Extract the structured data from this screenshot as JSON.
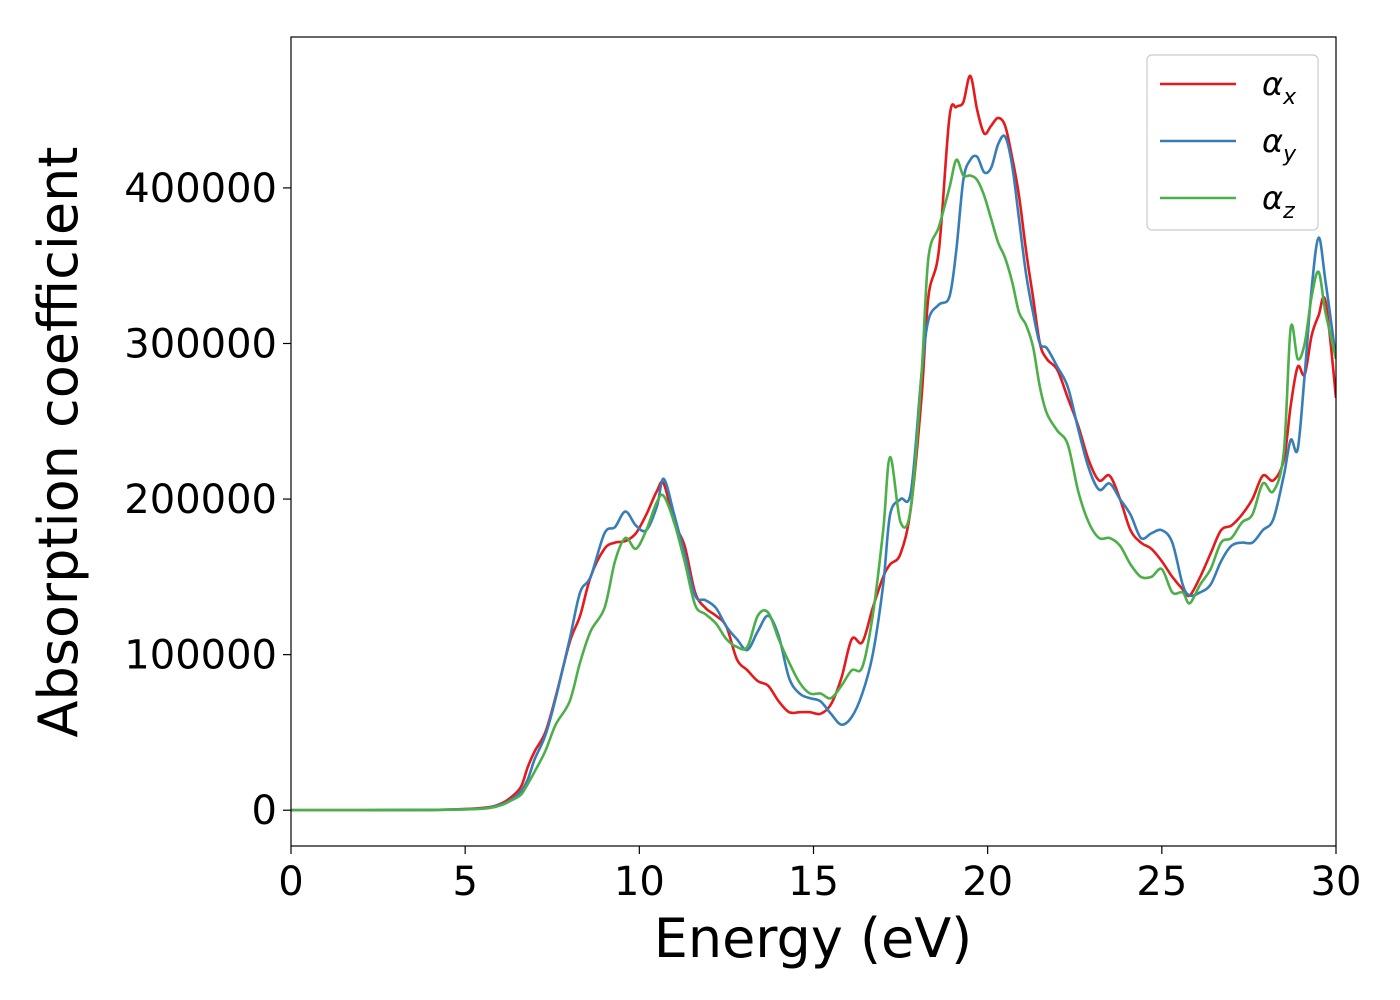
{
  "chart_data": {
    "type": "line",
    "xlabel": "Energy (eV)",
    "ylabel": "Absorption coefficient",
    "xlim": [
      0,
      30
    ],
    "ylim": [
      -23000,
      497000
    ],
    "xticks": [
      0,
      5,
      10,
      15,
      20,
      25,
      30
    ],
    "yticks": [
      0,
      100000,
      200000,
      300000,
      400000
    ],
    "grid": false,
    "legend": "top-right",
    "series": [
      {
        "name": "α",
        "sub": "x",
        "color": "#e41a1c",
        "x": [
          0,
          4,
          5.5,
          6.0,
          6.3,
          6.6,
          6.8,
          7.0,
          7.3,
          7.6,
          8.0,
          8.3,
          8.6,
          9.0,
          9.3,
          9.6,
          9.9,
          10.2,
          10.5,
          10.7,
          11.0,
          11.3,
          11.6,
          11.9,
          12.2,
          12.5,
          12.8,
          13.1,
          13.4,
          13.7,
          14.0,
          14.3,
          14.6,
          14.9,
          15.2,
          15.5,
          15.8,
          16.1,
          16.4,
          16.7,
          17.0,
          17.2,
          17.5,
          17.8,
          18.1,
          18.3,
          18.6,
          18.9,
          19.1,
          19.3,
          19.5,
          19.7,
          19.9,
          20.1,
          20.3,
          20.5,
          20.7,
          20.9,
          21.1,
          21.3,
          21.5,
          21.7,
          22.0,
          22.3,
          22.6,
          22.9,
          23.2,
          23.5,
          23.8,
          24.1,
          24.4,
          24.7,
          25.0,
          25.3,
          25.6,
          25.8,
          26.1,
          26.4,
          26.7,
          27.0,
          27.3,
          27.6,
          27.9,
          28.2,
          28.5,
          28.7,
          28.9,
          29.1,
          29.3,
          29.5,
          29.7,
          30
        ],
        "y": [
          0,
          200,
          1500,
          4000,
          8000,
          15000,
          28000,
          38000,
          50000,
          73000,
          108000,
          125000,
          150000,
          168000,
          172000,
          173000,
          178000,
          190000,
          205000,
          210000,
          185000,
          170000,
          140000,
          130000,
          125000,
          118000,
          97000,
          90000,
          83000,
          80000,
          70000,
          63000,
          63000,
          63000,
          62000,
          68000,
          85000,
          110000,
          108000,
          130000,
          150000,
          158000,
          165000,
          195000,
          265000,
          330000,
          360000,
          445000,
          452000,
          455000,
          472000,
          450000,
          435000,
          440000,
          445000,
          440000,
          420000,
          395000,
          360000,
          330000,
          300000,
          290000,
          283000,
          265000,
          247000,
          225000,
          212000,
          215000,
          200000,
          180000,
          172000,
          168000,
          160000,
          150000,
          142000,
          138000,
          150000,
          165000,
          180000,
          183000,
          190000,
          200000,
          215000,
          212000,
          225000,
          260000,
          285000,
          280000,
          305000,
          318000,
          327000,
          265000
        ]
      },
      {
        "name": "α",
        "sub": "y",
        "color": "#377eb8",
        "x": [
          0,
          4,
          5.5,
          6.0,
          6.3,
          6.6,
          6.8,
          7.0,
          7.3,
          7.6,
          8.0,
          8.3,
          8.6,
          9.0,
          9.3,
          9.6,
          9.9,
          10.2,
          10.5,
          10.7,
          11.0,
          11.3,
          11.6,
          11.9,
          12.2,
          12.5,
          12.8,
          13.1,
          13.4,
          13.7,
          14.0,
          14.3,
          14.6,
          14.9,
          15.2,
          15.5,
          15.8,
          16.1,
          16.4,
          16.7,
          17.0,
          17.2,
          17.5,
          17.8,
          18.1,
          18.3,
          18.6,
          18.9,
          19.1,
          19.3,
          19.5,
          19.7,
          19.9,
          20.1,
          20.3,
          20.5,
          20.7,
          20.9,
          21.1,
          21.3,
          21.5,
          21.7,
          22.0,
          22.3,
          22.6,
          22.9,
          23.2,
          23.5,
          23.8,
          24.1,
          24.4,
          24.7,
          25.0,
          25.3,
          25.6,
          25.8,
          26.1,
          26.4,
          26.7,
          27.0,
          27.3,
          27.6,
          27.9,
          28.2,
          28.5,
          28.7,
          28.9,
          29.1,
          29.3,
          29.5,
          29.7,
          30
        ],
        "y": [
          0,
          200,
          1200,
          3500,
          6500,
          12000,
          20000,
          33000,
          48000,
          72000,
          110000,
          140000,
          150000,
          178000,
          182000,
          192000,
          183000,
          180000,
          195000,
          213000,
          190000,
          165000,
          138000,
          135000,
          130000,
          118000,
          110000,
          103000,
          115000,
          125000,
          112000,
          85000,
          75000,
          72000,
          70000,
          62000,
          55000,
          60000,
          75000,
          100000,
          145000,
          190000,
          200000,
          205000,
          280000,
          315000,
          325000,
          330000,
          360000,
          405000,
          418000,
          420000,
          410000,
          413000,
          428000,
          433000,
          415000,
          380000,
          345000,
          320000,
          300000,
          297000,
          285000,
          272000,
          245000,
          220000,
          206000,
          210000,
          200000,
          190000,
          175000,
          178000,
          180000,
          172000,
          145000,
          138000,
          140000,
          145000,
          160000,
          170000,
          172000,
          172000,
          180000,
          187000,
          215000,
          238000,
          232000,
          280000,
          335000,
          368000,
          340000,
          290000
        ]
      },
      {
        "name": "α",
        "sub": "z",
        "color": "#4daf4a",
        "x": [
          0,
          4,
          5.5,
          6.0,
          6.3,
          6.6,
          6.8,
          7.0,
          7.3,
          7.6,
          8.0,
          8.3,
          8.6,
          9.0,
          9.3,
          9.6,
          9.9,
          10.2,
          10.5,
          10.7,
          11.0,
          11.3,
          11.6,
          11.9,
          12.2,
          12.5,
          12.8,
          13.1,
          13.4,
          13.7,
          14.0,
          14.3,
          14.6,
          14.9,
          15.2,
          15.5,
          15.8,
          16.1,
          16.4,
          16.7,
          17.0,
          17.2,
          17.5,
          17.8,
          18.1,
          18.3,
          18.6,
          18.9,
          19.1,
          19.3,
          19.5,
          19.7,
          19.9,
          20.1,
          20.3,
          20.5,
          20.7,
          20.9,
          21.1,
          21.3,
          21.5,
          21.7,
          22.0,
          22.3,
          22.6,
          22.9,
          23.2,
          23.5,
          23.8,
          24.1,
          24.4,
          24.7,
          25.0,
          25.3,
          25.6,
          25.8,
          26.1,
          26.4,
          26.7,
          27.0,
          27.3,
          27.6,
          27.9,
          28.2,
          28.5,
          28.7,
          28.9,
          29.1,
          29.3,
          29.5,
          29.7,
          30
        ],
        "y": [
          0,
          200,
          1000,
          3000,
          6000,
          10000,
          17000,
          25000,
          38000,
          55000,
          70000,
          95000,
          115000,
          130000,
          160000,
          175000,
          168000,
          180000,
          198000,
          202000,
          185000,
          160000,
          132000,
          126000,
          120000,
          110000,
          105000,
          105000,
          125000,
          127000,
          110000,
          95000,
          82000,
          75000,
          75000,
          72000,
          80000,
          90000,
          92000,
          125000,
          180000,
          227000,
          185000,
          195000,
          280000,
          355000,
          375000,
          400000,
          418000,
          408000,
          408000,
          405000,
          395000,
          380000,
          365000,
          355000,
          340000,
          320000,
          312000,
          298000,
          272000,
          255000,
          244000,
          235000,
          205000,
          185000,
          175000,
          175000,
          170000,
          158000,
          150000,
          150000,
          155000,
          140000,
          140000,
          133000,
          145000,
          155000,
          172000,
          175000,
          185000,
          190000,
          210000,
          205000,
          230000,
          310000,
          290000,
          300000,
          330000,
          346000,
          320000,
          290000
        ]
      }
    ]
  }
}
